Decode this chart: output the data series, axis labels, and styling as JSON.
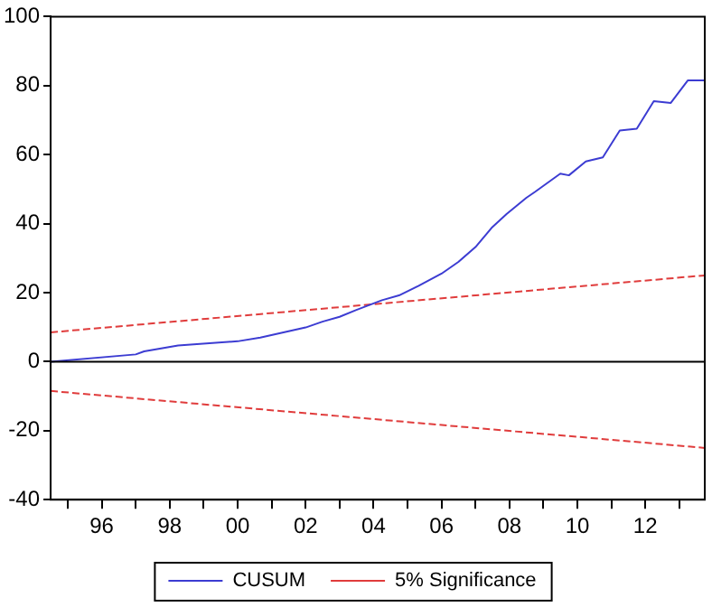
{
  "chart_data": {
    "type": "line",
    "xlim": [
      "1994-07",
      "2013-10"
    ],
    "xticks": [
      {
        "value": "1995",
        "label": null
      },
      {
        "value": "1996",
        "label": "96"
      },
      {
        "value": "1997",
        "label": null
      },
      {
        "value": "1998",
        "label": "98"
      },
      {
        "value": "1999",
        "label": null
      },
      {
        "value": "2000",
        "label": "00"
      },
      {
        "value": "2001",
        "label": null
      },
      {
        "value": "2002",
        "label": "02"
      },
      {
        "value": "2003",
        "label": null
      },
      {
        "value": "2004",
        "label": "04"
      },
      {
        "value": "2005",
        "label": null
      },
      {
        "value": "2006",
        "label": "06"
      },
      {
        "value": "2007",
        "label": null
      },
      {
        "value": "2008",
        "label": "08"
      },
      {
        "value": "2009",
        "label": null
      },
      {
        "value": "2010",
        "label": "10"
      },
      {
        "value": "2011",
        "label": null
      },
      {
        "value": "2012",
        "label": "12"
      },
      {
        "value": "2013",
        "label": null
      }
    ],
    "ylim": [
      -40,
      100
    ],
    "yticks": [
      -40,
      -20,
      0,
      20,
      40,
      60,
      80,
      100
    ],
    "grid": false,
    "legend": "bottom",
    "marker": "none",
    "ref_lines": [
      {
        "axis": "y",
        "value": 0,
        "color": "#000000"
      }
    ],
    "series": [
      {
        "name": "CUSUM",
        "color": "#3c3cd2",
        "line_style": "solid",
        "x": [
          "1994-07",
          "1997-01",
          "1997-04",
          "1998-04",
          "2000-01",
          "2000-09",
          "2002-01",
          "2002-07",
          "2003-01",
          "2003-07",
          "2004-04",
          "2004-10",
          "2005-05",
          "2006-01",
          "2006-07",
          "2007-01",
          "2007-07",
          "2007-12",
          "2008-07",
          "2008-10",
          "2009-07",
          "2009-10",
          "2010-04",
          "2010-10",
          "2011-04",
          "2011-10",
          "2012-04",
          "2012-10",
          "2013-04",
          "2013-10"
        ],
        "values": [
          0,
          2.1,
          3,
          4.7,
          5.9,
          7,
          9.9,
          11.6,
          13,
          15,
          17.8,
          19.2,
          22,
          25.5,
          28.9,
          33.2,
          39,
          42.8,
          47.5,
          49.2,
          54.5,
          54,
          58,
          59.2,
          67,
          67.5,
          75.5,
          75,
          81.5,
          81.5
        ]
      },
      {
        "name": "5% Significance",
        "color": "#e03c3c",
        "line_style": "dashed",
        "x": [
          "1994-07",
          "2013-10"
        ],
        "values": [
          8.5,
          25
        ]
      },
      {
        "color": "#e03c3c",
        "line_style": "dashed",
        "x": [
          "1994-07",
          "2013-10"
        ],
        "values": [
          -8.5,
          -25
        ]
      }
    ]
  }
}
